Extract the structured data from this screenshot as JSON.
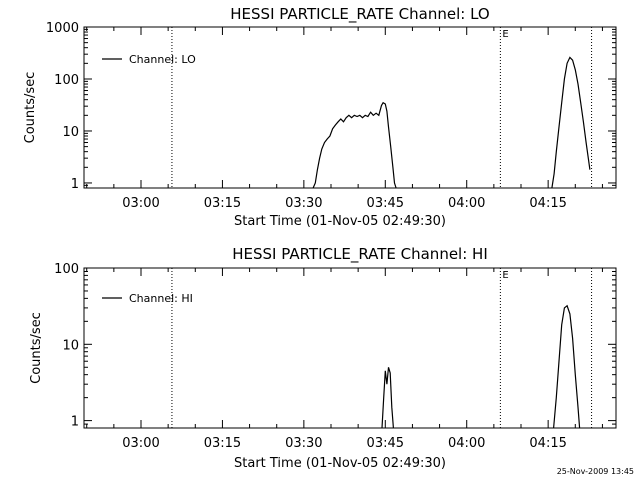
{
  "footer": {
    "timestamp": "25-Nov-2009 13:45"
  },
  "chart_data": [
    {
      "type": "line",
      "title": "HESSI PARTICLE_RATE Channel: LO",
      "xlabel": "Start Time (01-Nov-05 02:49:30)",
      "ylabel": "Counts/sec",
      "legend": {
        "label": "Channel: LO",
        "placement": "top-left"
      },
      "x_unit": "minutes since 02:49:30",
      "xlim": [
        0,
        98
      ],
      "x_ticks": [
        {
          "x": 10.5,
          "label": "03:00"
        },
        {
          "x": 25.5,
          "label": "03:15"
        },
        {
          "x": 40.5,
          "label": "03:30"
        },
        {
          "x": 55.5,
          "label": "03:45"
        },
        {
          "x": 70.5,
          "label": "04:00"
        },
        {
          "x": 85.5,
          "label": "04:15"
        }
      ],
      "y_scale": "log",
      "ylim": [
        0.8,
        1000
      ],
      "y_ticks": [
        {
          "y": 1,
          "label": "1"
        },
        {
          "y": 10,
          "label": "10"
        },
        {
          "y": 100,
          "label": "100"
        },
        {
          "y": 1000,
          "label": "1000"
        }
      ],
      "vlines": [
        {
          "x": 16.2,
          "label": ""
        },
        {
          "x": 76.7,
          "label": "E"
        },
        {
          "x": 93.5,
          "label": ""
        }
      ],
      "series": [
        {
          "name": "Channel: LO",
          "segments": [
            [
              [
                42.2,
                0.8
              ],
              [
                42.6,
                1.0
              ],
              [
                43.0,
                1.8
              ],
              [
                43.4,
                3.0
              ],
              [
                43.8,
                4.5
              ],
              [
                44.3,
                6.0
              ],
              [
                44.8,
                7.0
              ],
              [
                45.3,
                8.0
              ],
              [
                45.8,
                11
              ],
              [
                46.3,
                13
              ],
              [
                46.8,
                15
              ],
              [
                47.3,
                17
              ],
              [
                47.8,
                15
              ],
              [
                48.3,
                18
              ],
              [
                48.8,
                20
              ],
              [
                49.3,
                18
              ],
              [
                49.8,
                20
              ],
              [
                50.3,
                19
              ],
              [
                50.8,
                20
              ],
              [
                51.3,
                18
              ],
              [
                51.8,
                20
              ],
              [
                52.3,
                19
              ],
              [
                52.8,
                23
              ],
              [
                53.3,
                20
              ],
              [
                53.8,
                22
              ],
              [
                54.3,
                20
              ],
              [
                54.8,
                31
              ],
              [
                55.1,
                35
              ],
              [
                55.5,
                33
              ],
              [
                55.8,
                24
              ],
              [
                56.1,
                12
              ],
              [
                56.5,
                5
              ],
              [
                56.9,
                2
              ],
              [
                57.2,
                1.0
              ],
              [
                57.5,
                0.8
              ]
            ],
            [
              [
                86.2,
                0.8
              ],
              [
                86.6,
                1.5
              ],
              [
                87.0,
                4
              ],
              [
                87.5,
                12
              ],
              [
                88.0,
                35
              ],
              [
                88.5,
                100
              ],
              [
                89.0,
                200
              ],
              [
                89.5,
                260
              ],
              [
                90.0,
                230
              ],
              [
                90.5,
                150
              ],
              [
                91.0,
                80
              ],
              [
                91.5,
                35
              ],
              [
                92.0,
                15
              ],
              [
                92.5,
                6
              ],
              [
                92.9,
                3
              ],
              [
                93.2,
                1.8
              ]
            ]
          ]
        }
      ]
    },
    {
      "type": "line",
      "title": "HESSI PARTICLE_RATE Channel: HI",
      "xlabel": "Start Time (01-Nov-05 02:49:30)",
      "ylabel": "Counts/sec",
      "legend": {
        "label": "Channel: HI",
        "placement": "top-left"
      },
      "x_unit": "minutes since 02:49:30",
      "xlim": [
        0,
        98
      ],
      "x_ticks": [
        {
          "x": 10.5,
          "label": "03:00"
        },
        {
          "x": 25.5,
          "label": "03:15"
        },
        {
          "x": 40.5,
          "label": "03:30"
        },
        {
          "x": 55.5,
          "label": "03:45"
        },
        {
          "x": 70.5,
          "label": "04:00"
        },
        {
          "x": 85.5,
          "label": "04:15"
        }
      ],
      "y_scale": "log",
      "ylim": [
        0.8,
        100
      ],
      "y_ticks": [
        {
          "y": 1,
          "label": "1"
        },
        {
          "y": 10,
          "label": "10"
        },
        {
          "y": 100,
          "label": "100"
        }
      ],
      "vlines": [
        {
          "x": 16.2,
          "label": ""
        },
        {
          "x": 76.7,
          "label": "E"
        },
        {
          "x": 93.5,
          "label": ""
        }
      ],
      "series": [
        {
          "name": "Channel: HI",
          "segments": [
            [
              [
                54.9,
                0.8
              ],
              [
                55.2,
                2.0
              ],
              [
                55.5,
                4.5
              ],
              [
                55.8,
                3.0
              ],
              [
                56.1,
                5.0
              ],
              [
                56.4,
                4.2
              ],
              [
                56.7,
                1.5
              ],
              [
                57.0,
                0.8
              ]
            ],
            [
              [
                86.5,
                0.8
              ],
              [
                87.0,
                2.0
              ],
              [
                87.5,
                6.0
              ],
              [
                88.0,
                18
              ],
              [
                88.5,
                30
              ],
              [
                89.0,
                32
              ],
              [
                89.5,
                25
              ],
              [
                90.0,
                12
              ],
              [
                90.5,
                4.0
              ],
              [
                91.0,
                1.5
              ],
              [
                91.3,
                0.8
              ]
            ]
          ]
        }
      ]
    }
  ]
}
